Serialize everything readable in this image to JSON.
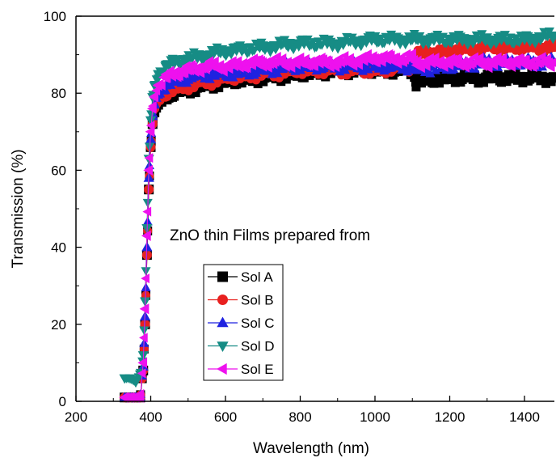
{
  "chart_data": {
    "type": "scatter",
    "title": "",
    "xlabel": "Wavelength (nm)",
    "ylabel": "Transmission (%)",
    "xlim": [
      200,
      1480
    ],
    "ylim": [
      0,
      100
    ],
    "x_ticks": [
      200,
      400,
      600,
      800,
      1000,
      1200,
      1400
    ],
    "y_ticks": [
      0,
      20,
      40,
      60,
      80,
      100
    ],
    "annotation": "ZnO thin Films prepared from",
    "legend_position": "lower-left",
    "grid": false,
    "series": [
      {
        "name": "Sol A",
        "color": "#000000",
        "marker": "square",
        "x": [
          330,
          345,
          360,
          372,
          380,
          385,
          390,
          395,
          400,
          405,
          410,
          420,
          440,
          460,
          500,
          550,
          600,
          700,
          800,
          900,
          1000,
          1100,
          1110,
          1200,
          1300,
          1400,
          1480
        ],
        "y": [
          1,
          1,
          1,
          1,
          8,
          20,
          38,
          55,
          66,
          72,
          75,
          77,
          79,
          80,
          81,
          82,
          83,
          84,
          85,
          86,
          86,
          86,
          83,
          84,
          84,
          84,
          84
        ]
      },
      {
        "name": "Sol B",
        "color": "#e8201f",
        "marker": "circle",
        "x": [
          330,
          345,
          360,
          372,
          380,
          385,
          390,
          395,
          400,
          405,
          410,
          420,
          440,
          460,
          500,
          550,
          600,
          700,
          800,
          900,
          1000,
          1100,
          1110,
          1200,
          1300,
          1400,
          1480
        ],
        "y": [
          1,
          1,
          1,
          1,
          8,
          20,
          38,
          55,
          66,
          72,
          76,
          78,
          80,
          81,
          82,
          83,
          84,
          85,
          86,
          86,
          86,
          87,
          90,
          91,
          92,
          92,
          92
        ]
      },
      {
        "name": "Sol C",
        "color": "#1f22e0",
        "marker": "triangle-up",
        "x": [
          330,
          345,
          360,
          372,
          380,
          385,
          390,
          395,
          400,
          405,
          410,
          420,
          440,
          460,
          500,
          550,
          600,
          700,
          800,
          900,
          1000,
          1100,
          1110,
          1200,
          1300,
          1400,
          1480
        ],
        "y": [
          1,
          1,
          1,
          1,
          9,
          22,
          40,
          58,
          68,
          74,
          77,
          80,
          82,
          83,
          84,
          85,
          85,
          86,
          87,
          87,
          87,
          87,
          86,
          87,
          88,
          88,
          88
        ]
      },
      {
        "name": "Sol D",
        "color": "#168c85",
        "marker": "triangle-down",
        "x": [
          330,
          345,
          360,
          372,
          380,
          385,
          390,
          395,
          400,
          405,
          410,
          420,
          440,
          460,
          500,
          550,
          600,
          700,
          800,
          900,
          1000,
          1100,
          1110,
          1200,
          1300,
          1400,
          1480
        ],
        "y": [
          6,
          6,
          5,
          7,
          12,
          26,
          45,
          63,
          73,
          79,
          82,
          85,
          87,
          88,
          89,
          90,
          91,
          92,
          93,
          93,
          94,
          94,
          94,
          94,
          94,
          94,
          95
        ]
      },
      {
        "name": "Sol E",
        "color": "#ee11ee",
        "marker": "triangle-left",
        "x": [
          330,
          345,
          360,
          372,
          380,
          385,
          390,
          395,
          400,
          405,
          410,
          420,
          440,
          460,
          500,
          550,
          600,
          700,
          800,
          900,
          1000,
          1100,
          1110,
          1200,
          1300,
          1400,
          1480
        ],
        "y": [
          1,
          1,
          1,
          1,
          10,
          24,
          43,
          60,
          70,
          76,
          79,
          82,
          84,
          85,
          86,
          87,
          87,
          88,
          88,
          88,
          89,
          89,
          88,
          88,
          88,
          88,
          88
        ]
      }
    ]
  }
}
